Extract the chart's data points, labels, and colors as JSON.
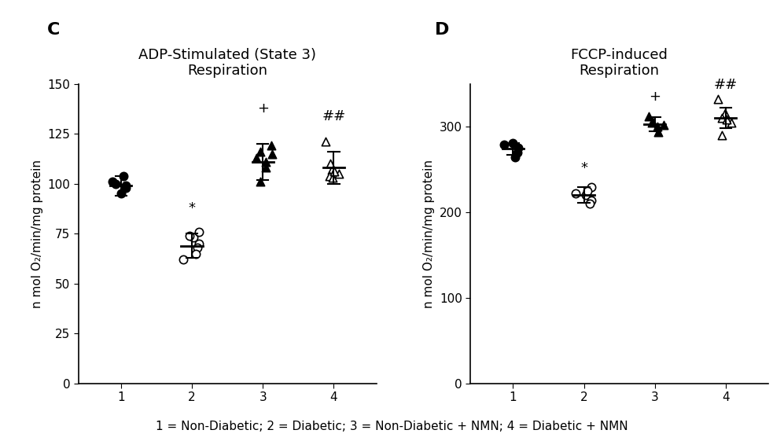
{
  "panel_C": {
    "title": "ADP-Stimulated (State 3)\nRespiration",
    "ylabel": "n mol O₂/min/mg protein",
    "ylim": [
      0,
      150
    ],
    "yticks": [
      0,
      25,
      50,
      75,
      100,
      125,
      150
    ],
    "xlim": [
      0.4,
      4.6
    ],
    "xticks": [
      1,
      2,
      3,
      4
    ],
    "groups": [
      {
        "x": 1,
        "points": [
          99,
          101,
          104,
          98,
          95,
          100
        ],
        "mean": 99,
        "sd": 5,
        "marker": "o",
        "filled": true
      },
      {
        "x": 2,
        "points": [
          73,
          76,
          70,
          68,
          62,
          65,
          74
        ],
        "mean": 69,
        "sd": 6,
        "marker": "o",
        "filled": false,
        "annotation": "*",
        "annot_yoffset": 9
      },
      {
        "x": 3,
        "points": [
          111,
          116,
          108,
          113,
          119,
          101,
          115
        ],
        "mean": 111,
        "sd": 9,
        "marker": "^",
        "filled": true,
        "annotation": "+",
        "annot_yoffset": 14
      },
      {
        "x": 4,
        "points": [
          107,
          121,
          105,
          104,
          103,
          110,
          106
        ],
        "mean": 108,
        "sd": 8,
        "marker": "^",
        "filled": false,
        "annotation": "##",
        "annot_yoffset": 14
      }
    ]
  },
  "panel_D": {
    "title": "FCCP-induced\nRespiration",
    "ylabel": "n mol O₂/min/mg protein",
    "ylim": [
      0,
      350
    ],
    "yticks": [
      0,
      100,
      200,
      300
    ],
    "xlim": [
      0.4,
      4.6
    ],
    "xticks": [
      1,
      2,
      3,
      4
    ],
    "groups": [
      {
        "x": 1,
        "points": [
          275,
          279,
          264,
          270,
          281
        ],
        "mean": 274,
        "sd": 7,
        "marker": "o",
        "filled": true
      },
      {
        "x": 2,
        "points": [
          220,
          229,
          214,
          210,
          222,
          225
        ],
        "mean": 220,
        "sd": 9,
        "marker": "o",
        "filled": false,
        "annotation": "*",
        "annot_yoffset": 14
      },
      {
        "x": 3,
        "points": [
          300,
          306,
          294,
          312,
          302,
          305
        ],
        "mean": 303,
        "sd": 8,
        "marker": "^",
        "filled": true,
        "annotation": "+",
        "annot_yoffset": 16
      },
      {
        "x": 4,
        "points": [
          312,
          332,
          305,
          290,
          316,
          310,
          308
        ],
        "mean": 310,
        "sd": 12,
        "marker": "^",
        "filled": false,
        "annotation": "##",
        "annot_yoffset": 18
      }
    ]
  },
  "panel_label_fontsize": 16,
  "title_fontsize": 13,
  "tick_fontsize": 11,
  "annot_fontsize": 13,
  "ylabel_fontsize": 11,
  "caption": "1 = Non-Diabetic; 2 = Diabetic; 3 = Non-Diabetic + NMN; 4 = Diabetic + NMN",
  "caption_fontsize": 11,
  "marker_size": 55,
  "mean_bar_halfwidth": 0.15,
  "cap_halfwidth": 0.08,
  "linewidth": 1.5,
  "jitter": 0.13,
  "bg_color": "#ffffff",
  "spine_color": "#000000",
  "data_color": "#000000",
  "open_color": "#ffffff"
}
